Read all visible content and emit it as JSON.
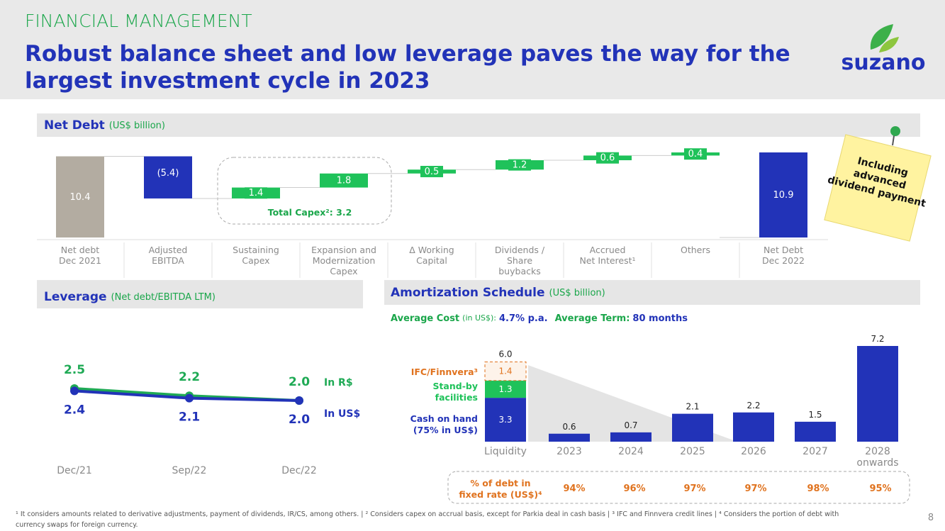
{
  "header": {
    "section": "FINANCIAL MANAGEMENT",
    "title": "Robust balance sheet and low leverage paves the way for the\nlargest investment cycle in 2023",
    "logo": "suzano"
  },
  "note": "Including\nadvanced\ndividend payment",
  "chart_data": [
    {
      "type": "waterfall",
      "title": "Net Debt",
      "subtitle": "(US$ billion)",
      "categories": [
        "Net debt\nDec 2021",
        "Adjusted\nEBITDA",
        "Sustaining\nCapex",
        "Expansion and\nModernization\nCapex",
        "Δ Working\nCapital",
        "Dividends /\nShare\nbuybacks",
        "Accrued\nNet Interest¹",
        "Others",
        "Net Debt\nDec 2022"
      ],
      "values": [
        10.4,
        -5.4,
        1.4,
        1.8,
        0.5,
        1.2,
        0.6,
        0.4,
        10.9
      ],
      "value_labels": [
        "10.4",
        "(5.4)",
        "1.4",
        "1.8",
        "0.5",
        "1.2",
        "0.6",
        "0.4",
        "10.9"
      ],
      "colors": [
        "#b3aca1",
        "#2233b8",
        "#1fc25a",
        "#1fc25a",
        "#1fc25a",
        "#1fc25a",
        "#1fc25a",
        "#1fc25a",
        "#2233b8"
      ],
      "annotation": "Total Capex²: 3.2"
    },
    {
      "type": "line",
      "title": "Leverage",
      "subtitle": "(Net debt/EBITDA LTM)",
      "categories": [
        "Dec/21",
        "Sep/22",
        "Dec/22"
      ],
      "series": [
        {
          "name": "In R$",
          "color": "#1faa55",
          "values": [
            2.5,
            2.2,
            2.0
          ],
          "value_labels": [
            "2.5",
            "2.2",
            "2.0"
          ]
        },
        {
          "name": "In US$",
          "color": "#2233b8",
          "values": [
            2.4,
            2.1,
            2.0
          ],
          "value_labels": [
            "2.4",
            "2.1",
            "2.0"
          ]
        }
      ]
    },
    {
      "type": "stacked-bar",
      "title": "Amortization Schedule",
      "subtitle": "(US$ billion)",
      "stats": {
        "cost_label": "Average Cost",
        "cost_unit": "(in US$):",
        "cost": "4.7% p.a.",
        "term_label": "Average Term:",
        "term": "80 months"
      },
      "categories": [
        "Liquidity",
        "2023",
        "2024",
        "2025",
        "2026",
        "2027",
        "2028\nonwards"
      ],
      "series": [
        {
          "name": "Cash on hand\n(75% in US$)",
          "color": "#2233b8",
          "values": [
            3.3,
            null,
            null,
            null,
            null,
            null,
            null
          ]
        },
        {
          "name": "Stand-by\nfacilities",
          "color": "#1fc25a",
          "values": [
            1.3,
            null,
            null,
            null,
            null,
            null,
            null
          ]
        },
        {
          "name": "IFC/Finnvera³",
          "color": "#e0731f",
          "values": [
            1.4,
            null,
            null,
            null,
            null,
            null,
            null
          ]
        },
        {
          "color": "#2233b8",
          "values": [
            null,
            0.6,
            0.7,
            2.1,
            2.2,
            1.5,
            7.2
          ]
        }
      ],
      "stack_total": {
        "value": 6,
        "label": "6.0"
      },
      "fixed_rate": {
        "label": "% of debt in\nfixed rate (US$)⁴",
        "values": [
          94,
          96,
          97,
          97,
          98,
          95
        ],
        "value_labels": [
          "94%",
          "96%",
          "97%",
          "97%",
          "98%",
          "95%"
        ]
      }
    }
  ],
  "footnote": "¹ It considers amounts related to derivative adjustments, payment of dividends, IR/CS, among others. | ² Considers capex on accrual basis, except for Parkia deal in cash basis | ³ IFC and Finnvera credit lines | ⁴ Considers the portion of debt with\ncurrency swaps for foreign currency.",
  "page_number": "8"
}
